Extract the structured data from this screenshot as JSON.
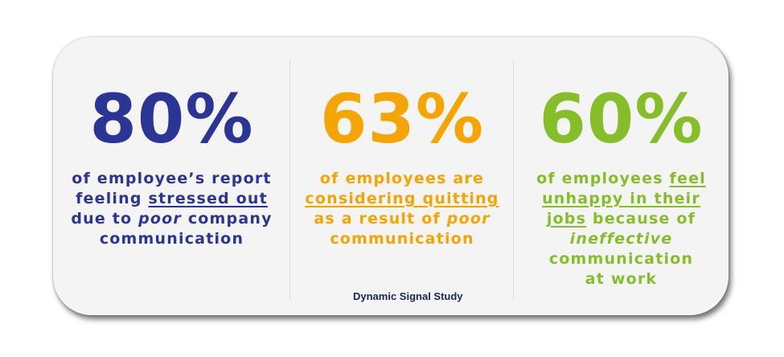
{
  "stats": [
    {
      "value": "80%",
      "color": "#2b3595",
      "lines": [
        {
          "a": "of employee’s report"
        },
        {
          "a": "feeling ",
          "u": "stressed out"
        },
        {
          "a": "due to ",
          "i": "poor",
          "b": " company"
        },
        {
          "a": "communication"
        }
      ]
    },
    {
      "value": "63%",
      "color": "#f6a400",
      "lines": [
        {
          "a": "of employees are"
        },
        {
          "u": "considering quitting"
        },
        {
          "a": "as a result of ",
          "i": "poor"
        },
        {
          "a": "communication"
        }
      ]
    },
    {
      "value": "60%",
      "color": "#86be2a",
      "lines": [
        {
          "a": "of employees ",
          "u": "feel"
        },
        {
          "u": "unhappy in their"
        },
        {
          "u": "jobs",
          "b": " because of"
        },
        {
          "i": "ineffective"
        },
        {
          "a": "communication"
        },
        {
          "a": "at work"
        }
      ]
    }
  ],
  "source": "Dynamic Signal Study"
}
